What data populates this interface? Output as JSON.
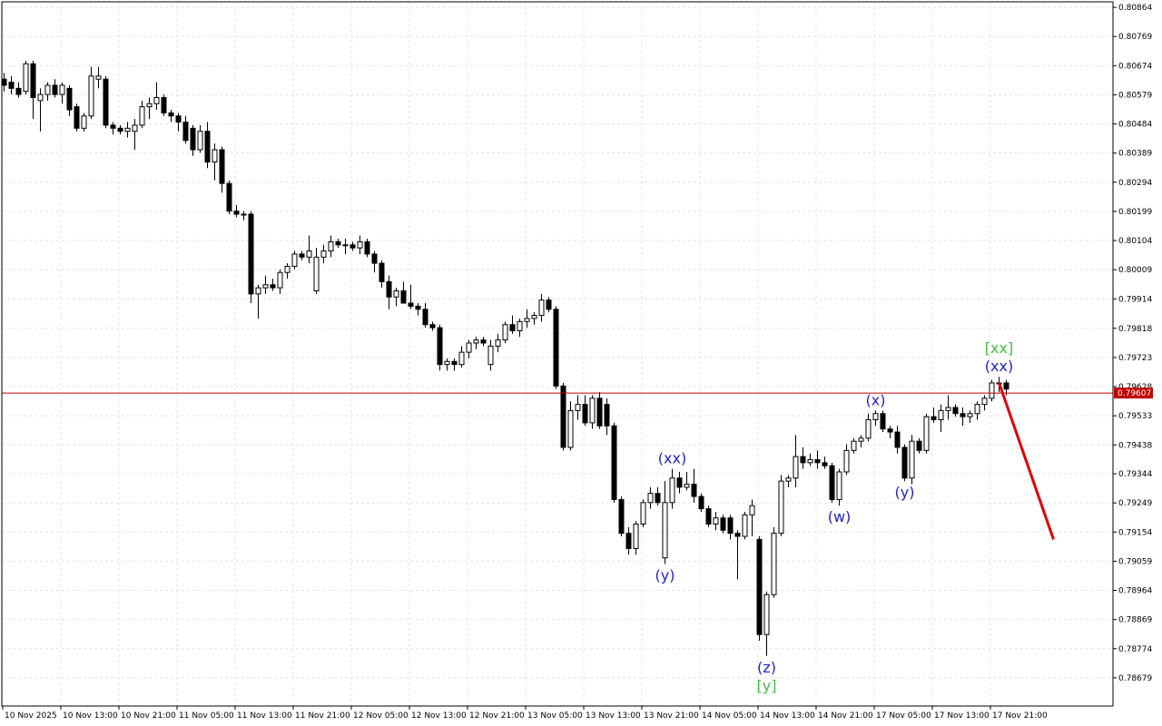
{
  "chart_data": {
    "type": "candlestick",
    "up_color": "#ffffff",
    "down_color": "#000000",
    "edge_color": "#000000",
    "grid": true,
    "categories": [
      "10 Nov 2025",
      null,
      null,
      null,
      null,
      null,
      null,
      null,
      "10 Nov 13:00",
      null,
      null,
      null,
      null,
      null,
      null,
      null,
      "10 Nov 21:00",
      null,
      null,
      null,
      null,
      null,
      null,
      null,
      "11 Nov 05:00",
      null,
      null,
      null,
      null,
      null,
      null,
      null,
      "11 Nov 13:00",
      null,
      null,
      null,
      null,
      null,
      null,
      null,
      "11 Nov 21:00",
      null,
      null,
      null,
      null,
      null,
      null,
      null,
      "12 Nov 05:00",
      null,
      null,
      null,
      null,
      null,
      null,
      null,
      "12 Nov 13:00",
      null,
      null,
      null,
      null,
      null,
      null,
      null,
      "12 Nov 21:00",
      null,
      null,
      null,
      null,
      null,
      null,
      null,
      "13 Nov 05:00",
      null,
      null,
      null,
      null,
      null,
      null,
      null,
      "13 Nov 13:00",
      null,
      null,
      null,
      null,
      null,
      null,
      null,
      "13 Nov 21:00",
      null,
      null,
      null,
      null,
      null,
      null,
      null,
      "14 Nov 05:00",
      null,
      null,
      null,
      null,
      null,
      null,
      null,
      "14 Nov 13:00",
      null,
      null,
      null,
      null,
      null,
      null,
      null,
      "14 Nov 21:00",
      null,
      null,
      null,
      null,
      null,
      null,
      null,
      "17 Nov 05:00",
      null,
      null,
      null,
      null,
      null,
      null,
      null,
      "17 Nov 13:00",
      null,
      null,
      null,
      null,
      null,
      null,
      null,
      "17 Nov 21:00",
      null,
      null
    ],
    "open": [
      0.8063,
      0.8062,
      0.806,
      0.8059,
      0.8068,
      0.8056,
      0.8058,
      0.8061,
      0.8058,
      0.806,
      0.8054,
      0.8047,
      0.8051,
      0.8063,
      0.8063,
      0.8048,
      0.8047,
      0.8046,
      0.8046,
      0.8048,
      0.8054,
      0.8055,
      0.8057,
      0.8052,
      0.8051,
      0.8049,
      0.8047,
      0.804,
      0.8046,
      0.8036,
      0.804,
      0.8029,
      0.802,
      0.8019,
      0.8019,
      0.7993,
      0.7995,
      0.7996,
      0.7995,
      0.8,
      0.8002,
      0.8006,
      0.8005,
      0.7994,
      0.8005,
      0.8007,
      0.801,
      0.8009,
      0.8009,
      0.8008,
      0.801,
      0.8006,
      0.8003,
      0.7997,
      0.7992,
      0.7994,
      0.799,
      0.7989,
      0.7988,
      0.7983,
      0.7982,
      0.797,
      0.7971,
      0.797,
      0.7974,
      0.7977,
      0.7978,
      0.797,
      0.7976,
      0.7978,
      0.7983,
      0.7981,
      0.7984,
      0.7985,
      0.7986,
      0.7991,
      0.7988,
      0.7963,
      0.7943,
      0.7955,
      0.7957,
      0.7951,
      0.7959,
      0.7957,
      0.795,
      0.7926,
      0.7915,
      0.791,
      0.7918,
      0.7925,
      0.7928,
      0.7907,
      0.7925,
      0.7933,
      0.793,
      0.7931,
      0.7927,
      0.7923,
      0.7918,
      0.792,
      0.792,
      0.7915,
      0.7914,
      0.7921,
      0.7913,
      0.7882,
      0.7895,
      0.7915,
      0.7932,
      0.7933,
      0.794,
      0.7938,
      0.7939,
      0.7938,
      0.7937,
      0.7926,
      0.7935,
      0.7942,
      0.7945,
      0.7946,
      0.7952,
      0.7954,
      0.7949,
      0.7948,
      0.7943,
      0.7933,
      0.7945,
      0.7942,
      0.7953,
      0.7952,
      0.7955,
      0.7956,
      0.7954,
      0.7953,
      0.7954,
      0.7957,
      0.7959,
      0.7964,
      0.7964
    ],
    "high": [
      0.8065,
      0.8064,
      0.8062,
      0.8069,
      0.8069,
      0.806,
      0.8062,
      0.8063,
      0.8062,
      0.8061,
      0.8055,
      0.8052,
      0.8067,
      0.8067,
      0.8064,
      0.8049,
      0.8048,
      0.8049,
      0.805,
      0.8056,
      0.8057,
      0.8062,
      0.8058,
      0.8053,
      0.8052,
      0.8051,
      0.8048,
      0.8048,
      0.8049,
      0.8042,
      0.8041,
      0.803,
      0.8022,
      0.802,
      0.802,
      0.7996,
      0.7999,
      0.7998,
      0.8001,
      0.8003,
      0.8007,
      0.8007,
      0.8012,
      0.8008,
      0.8009,
      0.8012,
      0.8011,
      0.8011,
      0.801,
      0.8012,
      0.8011,
      0.8007,
      0.8004,
      0.7999,
      0.7995,
      0.7997,
      0.7996,
      0.799,
      0.799,
      0.7984,
      0.7983,
      0.7972,
      0.7972,
      0.7976,
      0.7978,
      0.7979,
      0.7979,
      0.7978,
      0.798,
      0.7984,
      0.7986,
      0.7985,
      0.7988,
      0.7987,
      0.7993,
      0.7992,
      0.7989,
      0.7964,
      0.7958,
      0.796,
      0.796,
      0.796,
      0.7961,
      0.7959,
      0.7951,
      0.7927,
      0.7917,
      0.7919,
      0.7926,
      0.793,
      0.793,
      0.7932,
      0.7936,
      0.7935,
      0.7935,
      0.7936,
      0.7928,
      0.7924,
      0.7922,
      0.7921,
      0.7921,
      0.7916,
      0.7922,
      0.7926,
      0.7914,
      0.7896,
      0.7917,
      0.7934,
      0.7934,
      0.7947,
      0.7943,
      0.7941,
      0.7942,
      0.794,
      0.7938,
      0.7936,
      0.7944,
      0.7946,
      0.7947,
      0.7954,
      0.7955,
      0.7955,
      0.795,
      0.795,
      0.7944,
      0.7947,
      0.7946,
      0.7954,
      0.7956,
      0.7957,
      0.796,
      0.7957,
      0.7956,
      0.7955,
      0.7958,
      0.796,
      0.7965,
      0.7966,
      0.7965
    ],
    "low": [
      0.8059,
      0.8058,
      0.8057,
      0.8058,
      0.805,
      0.8046,
      0.8056,
      0.8057,
      0.8055,
      0.8051,
      0.8046,
      0.8046,
      0.805,
      0.806,
      0.8047,
      0.8045,
      0.8045,
      0.8044,
      0.804,
      0.8047,
      0.805,
      0.8053,
      0.8051,
      0.8049,
      0.8046,
      0.8042,
      0.8038,
      0.8039,
      0.8034,
      0.803,
      0.8026,
      0.8019,
      0.8018,
      0.8017,
      0.799,
      0.7985,
      0.7993,
      0.7994,
      0.7993,
      0.7998,
      0.8001,
      0.8004,
      0.8003,
      0.7993,
      0.8003,
      0.8005,
      0.8008,
      0.8006,
      0.8007,
      0.8006,
      0.8005,
      0.8,
      0.7995,
      0.7988,
      0.7989,
      0.799,
      0.7988,
      0.7986,
      0.7982,
      0.7981,
      0.7968,
      0.7968,
      0.7968,
      0.7969,
      0.7972,
      0.7975,
      0.7976,
      0.7968,
      0.7974,
      0.7977,
      0.798,
      0.7979,
      0.7982,
      0.7983,
      0.7984,
      0.7987,
      0.7962,
      0.7942,
      0.7942,
      0.7952,
      0.795,
      0.7949,
      0.7949,
      0.7947,
      0.7925,
      0.7914,
      0.7908,
      0.7908,
      0.7917,
      0.7923,
      0.7924,
      0.7905,
      0.7923,
      0.7928,
      0.7929,
      0.7925,
      0.7922,
      0.7917,
      0.7916,
      0.7915,
      0.7913,
      0.79,
      0.7913,
      0.7914,
      0.788,
      0.7875,
      0.7894,
      0.7914,
      0.793,
      0.793,
      0.7936,
      0.7937,
      0.7936,
      0.7936,
      0.7925,
      0.7924,
      0.7934,
      0.7941,
      0.7943,
      0.7945,
      0.795,
      0.7948,
      0.7946,
      0.7941,
      0.7932,
      0.7931,
      0.7941,
      0.7941,
      0.7951,
      0.7948,
      0.7952,
      0.7953,
      0.795,
      0.7951,
      0.7952,
      0.7955,
      0.7958,
      0.7961,
      0.796
    ],
    "close": [
      0.8061,
      0.806,
      0.8058,
      0.8068,
      0.8057,
      0.8058,
      0.8061,
      0.8058,
      0.8061,
      0.8053,
      0.8047,
      0.8051,
      0.8064,
      0.8064,
      0.8048,
      0.8047,
      0.8046,
      0.8047,
      0.8048,
      0.8054,
      0.8055,
      0.8057,
      0.8052,
      0.8051,
      0.8049,
      0.8043,
      0.804,
      0.8046,
      0.8036,
      0.804,
      0.8029,
      0.802,
      0.8019,
      0.8019,
      0.7993,
      0.7995,
      0.7996,
      0.7995,
      0.8,
      0.8002,
      0.8006,
      0.8005,
      0.8007,
      0.8005,
      0.8007,
      0.801,
      0.8009,
      0.8009,
      0.8008,
      0.801,
      0.8006,
      0.8003,
      0.7997,
      0.7992,
      0.7994,
      0.799,
      0.7989,
      0.7988,
      0.7983,
      0.7982,
      0.797,
      0.7971,
      0.797,
      0.7974,
      0.7977,
      0.7978,
      0.7977,
      0.7976,
      0.7978,
      0.7983,
      0.7981,
      0.7984,
      0.7985,
      0.7986,
      0.7991,
      0.7988,
      0.7963,
      0.7943,
      0.7955,
      0.7957,
      0.7951,
      0.7959,
      0.795,
      0.795,
      0.7926,
      0.7915,
      0.791,
      0.7918,
      0.7925,
      0.7928,
      0.7925,
      0.7925,
      0.7933,
      0.793,
      0.7931,
      0.7927,
      0.7923,
      0.7918,
      0.792,
      0.7916,
      0.7915,
      0.7914,
      0.7921,
      0.7924,
      0.7882,
      0.7895,
      0.7915,
      0.7932,
      0.7933,
      0.794,
      0.7938,
      0.7939,
      0.7938,
      0.7937,
      0.7926,
      0.7935,
      0.7942,
      0.7945,
      0.7946,
      0.7952,
      0.7954,
      0.7949,
      0.7948,
      0.7943,
      0.7933,
      0.7945,
      0.7942,
      0.7953,
      0.7952,
      0.7955,
      0.7956,
      0.7954,
      0.7953,
      0.7954,
      0.7957,
      0.7959,
      0.7964,
      0.7964,
      0.7962
    ],
    "ylim": [
      0.78587,
      0.80882
    ],
    "yticks": [
      0.80864,
      0.80769,
      0.80674,
      0.80579,
      0.80484,
      0.80389,
      0.80294,
      0.80199,
      0.80104,
      0.80009,
      0.79914,
      0.79818,
      0.79723,
      0.79628,
      0.79533,
      0.79438,
      0.79344,
      0.79249,
      0.79154,
      0.79059,
      0.78964,
      0.78869,
      0.78774,
      0.78679
    ],
    "current_price": 0.79607,
    "current_color": "#c00000",
    "forecast": {
      "color": "#e00000",
      "x": [
        137,
        144.5
      ],
      "values": [
        0.7964,
        0.7913
      ]
    },
    "annotations": [
      {
        "text": "(xx)",
        "color": "#2020d0",
        "index": 92,
        "place": "above"
      },
      {
        "text": "(y)",
        "color": "#2020d0",
        "index": 91,
        "place": "below"
      },
      {
        "text": "(z)",
        "color": "#2020d0",
        "index": 105,
        "place": "below"
      },
      {
        "text": "[y]",
        "color": "#44bb44",
        "index": 105,
        "place": "below"
      },
      {
        "text": "(w)",
        "color": "#2020d0",
        "index": 115,
        "place": "below"
      },
      {
        "text": "(x)",
        "color": "#2020d0",
        "index": 120,
        "place": "above"
      },
      {
        "text": "(y)",
        "color": "#2020d0",
        "index": 124,
        "place": "below"
      },
      {
        "text": "(xx)",
        "color": "#2020d0",
        "index": 137,
        "place": "above"
      },
      {
        "text": "[xx]",
        "color": "#44bb44",
        "index": 137,
        "place": "above"
      }
    ]
  }
}
